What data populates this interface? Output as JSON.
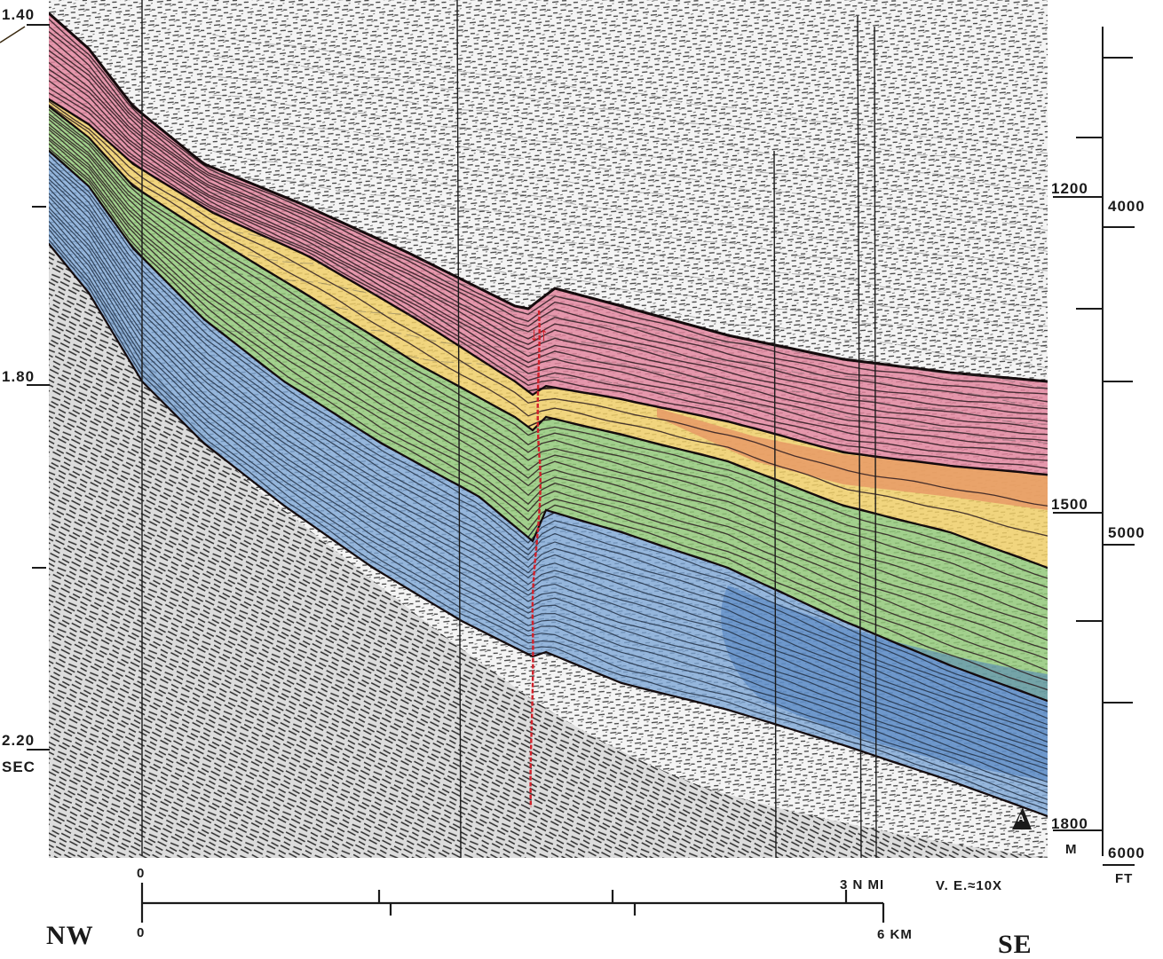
{
  "figure": {
    "type": "interpreted seismic reflection profile",
    "vertical_exaggeration": "V. E.≈10X",
    "fault_label": "↓↑",
    "corner_label": "A"
  },
  "directions": {
    "left": "NW",
    "right": "SE"
  },
  "time_axis": {
    "labels": [
      "1.40",
      "1.80",
      "2.20",
      "SEC"
    ]
  },
  "depth_axis_m": {
    "labels": [
      "1200",
      "1500",
      "1800",
      "M"
    ]
  },
  "depth_axis_ft": {
    "labels": [
      "4000",
      "5000",
      "6000",
      "FT"
    ]
  },
  "scale_bar": {
    "upper_zero": "0",
    "upper_end": "3 N MI",
    "lower_zero": "0",
    "lower_end": "6 KM"
  },
  "colors": {
    "pink_unit": "#e2869f",
    "orange_unit": "#e89a66",
    "yellow_unit": "#f0cf68",
    "green_unit": "#93c97a",
    "blue_unit": "#7da6d6",
    "deep_blue_unit": "#4f7fc0",
    "fault": "#d2202a",
    "reflector": "#2a1a1e",
    "noise": "#3a3a3a"
  }
}
